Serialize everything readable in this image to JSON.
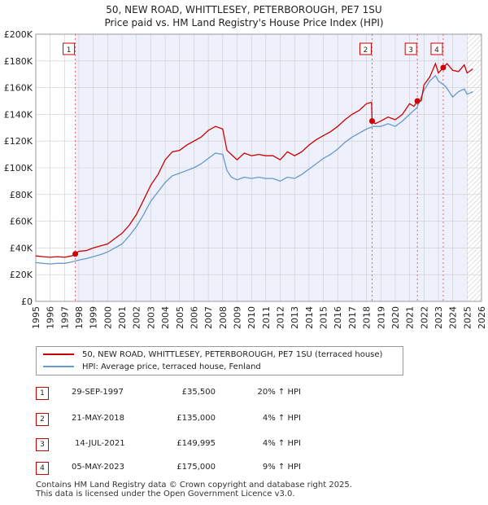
{
  "title_line1": "50, NEW ROAD, WHITTLESEY, PETERBOROUGH, PE7 1SU",
  "title_line2": "Price paid vs. HM Land Registry's House Price Index (HPI)",
  "colors": {
    "property": "#cc0000",
    "hpi": "#6699cc",
    "shade": "#eef1fb",
    "grid": "#cccccc",
    "marker_line": "#dd4444"
  },
  "chart_data": {
    "type": "line",
    "title": "Price paid vs. HM Land Registry's House Price Index (HPI)",
    "xlabel": "",
    "ylabel": "",
    "xlim": [
      1995,
      2026
    ],
    "ylim": [
      0,
      200000
    ],
    "y_ticks": [
      0,
      20000,
      40000,
      60000,
      80000,
      100000,
      120000,
      140000,
      160000,
      180000,
      200000
    ],
    "y_tick_labels": [
      "£0",
      "£20K",
      "£40K",
      "£60K",
      "£80K",
      "£100K",
      "£120K",
      "£140K",
      "£160K",
      "£180K",
      "£200K"
    ],
    "x_ticks": [
      1995,
      1996,
      1997,
      1998,
      1999,
      2000,
      2001,
      2002,
      2003,
      2004,
      2005,
      2006,
      2007,
      2008,
      2009,
      2010,
      2011,
      2012,
      2013,
      2014,
      2015,
      2016,
      2017,
      2018,
      2019,
      2020,
      2021,
      2022,
      2023,
      2024,
      2025,
      2026
    ],
    "shaded_from": 1997.75,
    "future_from": 2025.0,
    "series": [
      {
        "name": "50, NEW ROAD, WHITTLESEY, PETERBOROUGH, PE7 1SU (terraced house)",
        "x": [
          1995,
          1995.5,
          1996,
          1996.5,
          1997,
          1997.5,
          1997.75,
          1998,
          1998.5,
          1999,
          1999.5,
          2000,
          2000.5,
          2001,
          2001.5,
          2002,
          2002.5,
          2003,
          2003.5,
          2004,
          2004.5,
          2005,
          2005.5,
          2006,
          2006.5,
          2007,
          2007.5,
          2008,
          2008.3,
          2008.6,
          2009,
          2009.5,
          2010,
          2010.5,
          2011,
          2011.5,
          2012,
          2012.5,
          2013,
          2013.5,
          2014,
          2014.5,
          2015,
          2015.5,
          2016,
          2016.5,
          2017,
          2017.5,
          2018,
          2018.35,
          2018.39,
          2018.6,
          2019,
          2019.5,
          2020,
          2020.5,
          2021,
          2021.3,
          2021.54,
          2021.8,
          2022,
          2022.4,
          2022.8,
          2023,
          2023.34,
          2023.6,
          2024,
          2024.4,
          2024.8,
          2025,
          2025.4
        ],
        "values": [
          34000,
          33500,
          33000,
          33500,
          33000,
          34000,
          35500,
          37500,
          38000,
          40000,
          41500,
          43000,
          47000,
          51000,
          57000,
          65000,
          76000,
          87000,
          95000,
          106000,
          112000,
          113000,
          117000,
          120000,
          123000,
          128000,
          131000,
          129000,
          113000,
          110000,
          106000,
          111000,
          109000,
          110000,
          109000,
          109000,
          106000,
          112000,
          109000,
          112000,
          117000,
          121000,
          124000,
          127000,
          131000,
          136000,
          140000,
          143000,
          148000,
          149000,
          135000,
          133000,
          135000,
          138000,
          136000,
          140000,
          148000,
          146000,
          149995,
          150000,
          162000,
          168000,
          178000,
          171000,
          175000,
          178000,
          173000,
          172000,
          177000,
          171000,
          174000
        ]
      },
      {
        "name": "HPI: Average price, terraced house, Fenland",
        "x": [
          1995,
          1995.5,
          1996,
          1996.5,
          1997,
          1997.5,
          1998,
          1998.5,
          1999,
          1999.5,
          2000,
          2000.5,
          2001,
          2001.5,
          2002,
          2002.5,
          2003,
          2003.5,
          2004,
          2004.5,
          2005,
          2005.5,
          2006,
          2006.5,
          2007,
          2007.5,
          2008,
          2008.3,
          2008.6,
          2009,
          2009.5,
          2010,
          2010.5,
          2011,
          2011.5,
          2012,
          2012.5,
          2013,
          2013.5,
          2014,
          2014.5,
          2015,
          2015.5,
          2016,
          2016.5,
          2017,
          2017.5,
          2018,
          2018.5,
          2019,
          2019.5,
          2020,
          2020.5,
          2021,
          2021.5,
          2022,
          2022.4,
          2022.8,
          2023,
          2023.5,
          2024,
          2024.4,
          2024.8,
          2025,
          2025.4
        ],
        "values": [
          29000,
          28500,
          28000,
          28500,
          28500,
          29500,
          31000,
          32000,
          33500,
          35000,
          37000,
          40000,
          43000,
          49000,
          56000,
          65000,
          75000,
          82000,
          89000,
          94000,
          96000,
          98000,
          100000,
          103000,
          107000,
          111000,
          110000,
          98000,
          93000,
          91000,
          93000,
          92000,
          93000,
          92000,
          92000,
          90000,
          93000,
          92000,
          95000,
          99000,
          103000,
          107000,
          110000,
          114000,
          119000,
          123000,
          126000,
          129000,
          131000,
          131000,
          133000,
          131000,
          135000,
          140000,
          145000,
          158000,
          165000,
          169000,
          165000,
          161000,
          153000,
          157000,
          159000,
          155000,
          157000
        ]
      }
    ],
    "sales": [
      {
        "label": "1",
        "x": 1997.75,
        "value": 35500
      },
      {
        "label": "2",
        "x": 2018.39,
        "value": 135000
      },
      {
        "label": "3",
        "x": 2021.54,
        "value": 149995
      },
      {
        "label": "4",
        "x": 2023.34,
        "value": 175000
      }
    ]
  },
  "legend": {
    "property": "50, NEW ROAD, WHITTLESEY, PETERBOROUGH, PE7 1SU (terraced house)",
    "hpi": "HPI: Average price, terraced house, Fenland"
  },
  "transactions": [
    {
      "num": "1",
      "date": "29-SEP-1997",
      "price": "£35,500",
      "hpi": "20% ↑ HPI"
    },
    {
      "num": "2",
      "date": "21-MAY-2018",
      "price": "£135,000",
      "hpi": "4% ↑ HPI"
    },
    {
      "num": "3",
      "date": "14-JUL-2021",
      "price": "£149,995",
      "hpi": "4% ↑ HPI"
    },
    {
      "num": "4",
      "date": "05-MAY-2023",
      "price": "£175,000",
      "hpi": "9% ↑ HPI"
    }
  ],
  "footer": {
    "line1": "Contains HM Land Registry data © Crown copyright and database right 2025.",
    "line2": "This data is licensed under the Open Government Licence v3.0."
  }
}
